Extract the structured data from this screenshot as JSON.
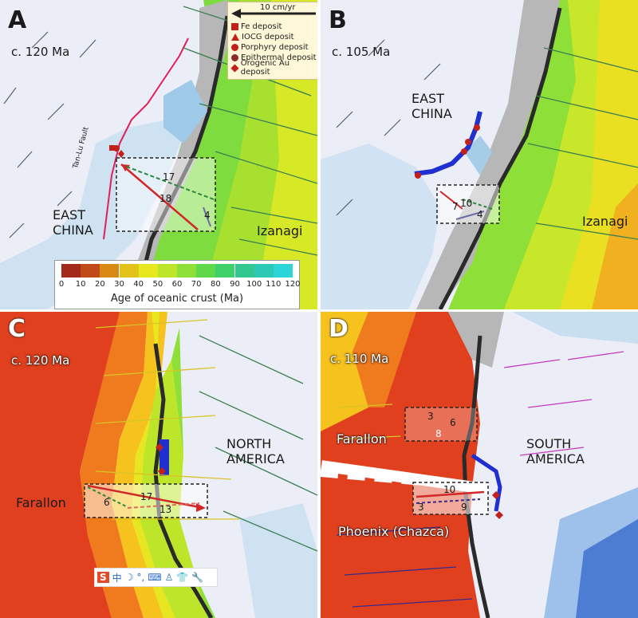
{
  "panels": {
    "A": {
      "letter": "A",
      "age": "c. 120 Ma",
      "labels": {
        "east_china": "EAST\nCHINA",
        "plate": "Izanagi",
        "fault": "Tan-Lu Fault"
      },
      "vectors": {
        "n1": "17",
        "n2": "18",
        "n3": "4"
      }
    },
    "B": {
      "letter": "B",
      "age": "c. 105 Ma",
      "labels": {
        "east_china": "EAST\nCHINA",
        "plate": "Izanagi"
      },
      "vectors": {
        "n1": "10",
        "n2": "7",
        "n3": "4"
      }
    },
    "C": {
      "letter": "C",
      "age": "c. 120 Ma",
      "labels": {
        "continent": "NORTH\nAMERICA",
        "plate": "Farallon"
      },
      "vectors": {
        "n1": "17",
        "n2": "6",
        "n3": "13"
      }
    },
    "D": {
      "letter": "D",
      "age": "c. 110 Ma",
      "labels": {
        "continent": "SOUTH\nAMERICA",
        "plate1": "Farallon",
        "plate2": "Phoenix (Chazca)"
      },
      "vectors": {
        "n1": "3",
        "n2": "6",
        "n3": "8",
        "n4": "10",
        "n5": "3",
        "n6": "9"
      }
    }
  },
  "legend": {
    "scale": "10 cm/yr",
    "items": [
      {
        "symbol": "square",
        "label": "Fe deposit"
      },
      {
        "symbol": "triangle",
        "label": "IOCG deposit"
      },
      {
        "symbol": "circle",
        "label": "Porphyry deposit"
      },
      {
        "symbol": "circle",
        "label": "Epithermal deposit"
      },
      {
        "symbol": "diamond",
        "label": "Orogenic Au deposit"
      }
    ]
  },
  "colorbar": {
    "title": "Age of oceanic crust (Ma)",
    "ticks": [
      "0",
      "10",
      "20",
      "30",
      "40",
      "50",
      "60",
      "70",
      "80",
      "90",
      "100",
      "110",
      "120"
    ],
    "colors": [
      "#a32a1a",
      "#c14a18",
      "#d98a14",
      "#e3c21a",
      "#e8e81e",
      "#bde62a",
      "#8ee038",
      "#5fd84a",
      "#3fd06a",
      "#32c890",
      "#2ccab4",
      "#2cd6d8"
    ]
  },
  "toolbar": {
    "items": [
      "S",
      "中",
      "☽",
      "°,",
      "⌨",
      "♙",
      "👕",
      "🔧"
    ]
  },
  "colors": {
    "deposit": "#c2201a",
    "arc": "#2030d0",
    "trench": "#2a2a2a",
    "ocean_land": "#eaecf6"
  }
}
